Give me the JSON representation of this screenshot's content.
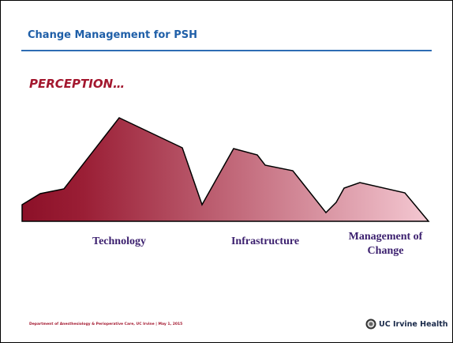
{
  "header": {
    "title": "Change Management for PSH"
  },
  "subtitle": "PERCEPTION…",
  "labels": [
    "Technology",
    "Infrastructure",
    "Management of Change"
  ],
  "footer": {
    "text": "Department of Anesthesiology & Perioperative Care, UC Irvine | May 1, 2015",
    "logo": "UC Irvine Health"
  }
}
